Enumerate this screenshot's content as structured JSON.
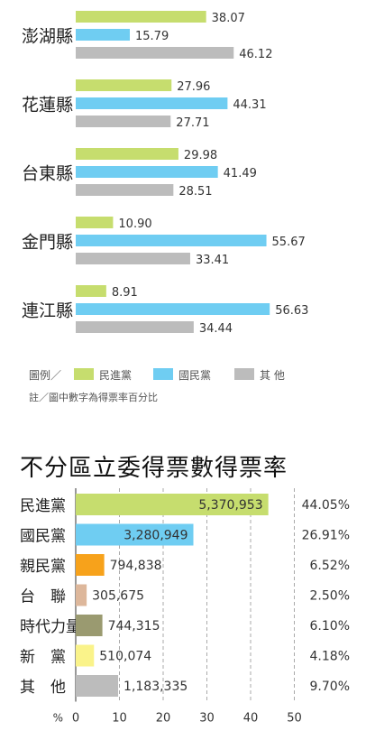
{
  "chart_data": [
    {
      "type": "bar",
      "orientation": "horizontal",
      "categories": [
        "澎湖縣",
        "花蓮縣",
        "台東縣",
        "金門縣",
        "連江縣"
      ],
      "series": [
        {
          "name": "民進黨",
          "color": "#c6dd6e",
          "values": [
            38.07,
            27.96,
            29.98,
            10.9,
            8.91
          ],
          "labels": [
            "38.07",
            "27.96",
            "29.98",
            "10.90",
            "8.91"
          ]
        },
        {
          "name": "國民黨",
          "color": "#6fcdf2",
          "values": [
            15.79,
            44.31,
            41.49,
            55.67,
            56.63
          ],
          "labels": [
            "15.79",
            "44.31",
            "41.49",
            "55.67",
            "56.63"
          ]
        },
        {
          "name": "其 他",
          "color": "#bcbcbc",
          "values": [
            46.12,
            27.71,
            28.51,
            33.41,
            34.44
          ],
          "labels": [
            "46.12",
            "27.71",
            "28.51",
            "33.41",
            "34.44"
          ]
        }
      ],
      "legend_prefix": "圖例／",
      "note": "註／圖中數字為得票率百分比",
      "grid": false
    },
    {
      "type": "bar",
      "orientation": "horizontal",
      "title": "不分區立委得票數得票率",
      "categories": [
        "民進黨",
        "國民黨",
        "親民黨",
        "台　聯",
        "時代力量",
        "新　黨",
        "其　他"
      ],
      "values": [
        44.05,
        26.91,
        6.52,
        2.5,
        6.1,
        4.18,
        9.7
      ],
      "vote_labels": [
        "5,370,953",
        "3,280,949",
        "794,838",
        "305,675",
        "744,315",
        "510,074",
        "1,183,335"
      ],
      "percent_labels": [
        "44.05%",
        "26.91%",
        "6.52%",
        "2.50%",
        "6.10%",
        "4.18%",
        "9.70%"
      ],
      "colors": [
        "#c6dd6e",
        "#6fcdf2",
        "#f7a21b",
        "#ddb79b",
        "#9a9a70",
        "#faf38a",
        "#bcbcbc"
      ],
      "xlim": [
        0,
        50
      ],
      "xticks": [
        "0",
        "10",
        "20",
        "30",
        "40",
        "50"
      ],
      "xunit": "%",
      "grid": true
    }
  ]
}
